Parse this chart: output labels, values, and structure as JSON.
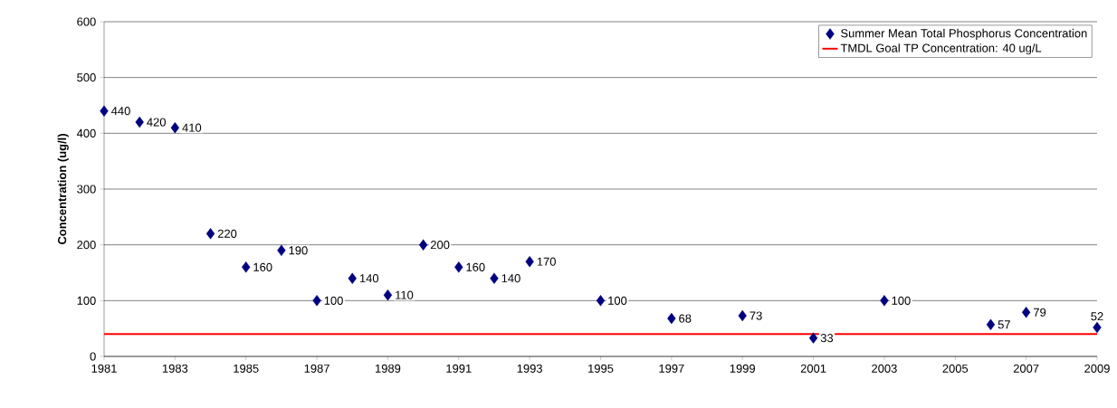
{
  "chart_data": {
    "type": "scatter",
    "ylabel": "Concentration (ug/l)",
    "x": [
      1981,
      1982,
      1983,
      1984,
      1985,
      1986,
      1987,
      1988,
      1989,
      1990,
      1991,
      1992,
      1993,
      1995,
      1997,
      1999,
      2001,
      2003,
      2006,
      2007,
      2009
    ],
    "series": [
      {
        "name": "Summer Mean Total Phosphorus Concentration",
        "color": "#000080",
        "values": [
          440,
          420,
          410,
          220,
          160,
          190,
          100,
          140,
          110,
          200,
          160,
          140,
          170,
          100,
          68,
          73,
          33,
          100,
          57,
          79,
          52
        ],
        "value_labels": [
          "440",
          "420",
          "410",
          "220",
          "160",
          "190",
          "100",
          "140",
          "110",
          "200",
          "160",
          "140",
          "170",
          "100",
          "68",
          "73",
          "33",
          "100",
          "57",
          "79",
          "52"
        ]
      }
    ],
    "marker": "diamond",
    "data_labels": true,
    "xlim": [
      1981,
      2009
    ],
    "xticks": [
      1981,
      1983,
      1985,
      1987,
      1989,
      1991,
      1993,
      1995,
      1997,
      1999,
      2001,
      2003,
      2005,
      2007,
      2009
    ],
    "ylim": [
      0,
      600
    ],
    "yticks": [
      0,
      100,
      200,
      300,
      400,
      500,
      600
    ],
    "grid": "y",
    "legend": "top right",
    "ref_lines": [
      {
        "axis": "y",
        "value": 40,
        "label": "TMDL Goal TP Concentration: 40 ug/L",
        "color": "#ff0000"
      }
    ]
  }
}
